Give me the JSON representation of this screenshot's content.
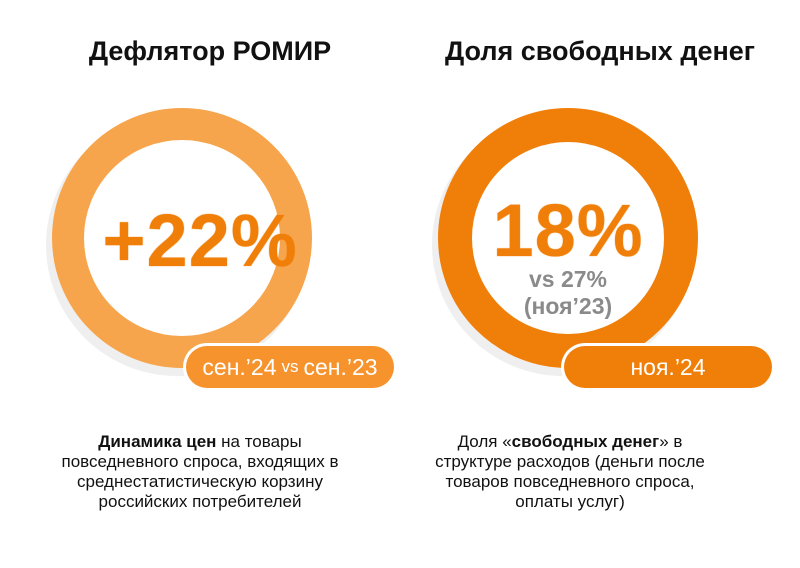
{
  "left": {
    "title": "Дефлятор РОМИР",
    "value": "+22%",
    "period_a": "сен.’24",
    "period_vs": "vs",
    "period_b": "сен.’23",
    "desc_bold": "Динамика цен",
    "desc_line1_rest": " на товары",
    "desc_line2": "повседневного спроса, входящих в",
    "desc_line3": "среднестатистическую корзину",
    "desc_line4": "российских потребителей"
  },
  "right": {
    "title": "Доля свободных денег",
    "value": "18%",
    "compare_line1": "vs 27%",
    "compare_line2": "(ноя’23)",
    "period": "ноя.’24",
    "desc_prefix": "Доля «",
    "desc_bold": "свободных денег",
    "desc_suffix": "» в",
    "desc_line2": "структуре расходов (деньги после",
    "desc_line3": "товаров повседневного спроса,",
    "desc_line4": "оплаты услуг)"
  },
  "colors": {
    "ring_left": "#f7a54c",
    "ring_right": "#f07f0a",
    "accent": "#f07f0a",
    "sub_text": "#8a8a8a"
  }
}
